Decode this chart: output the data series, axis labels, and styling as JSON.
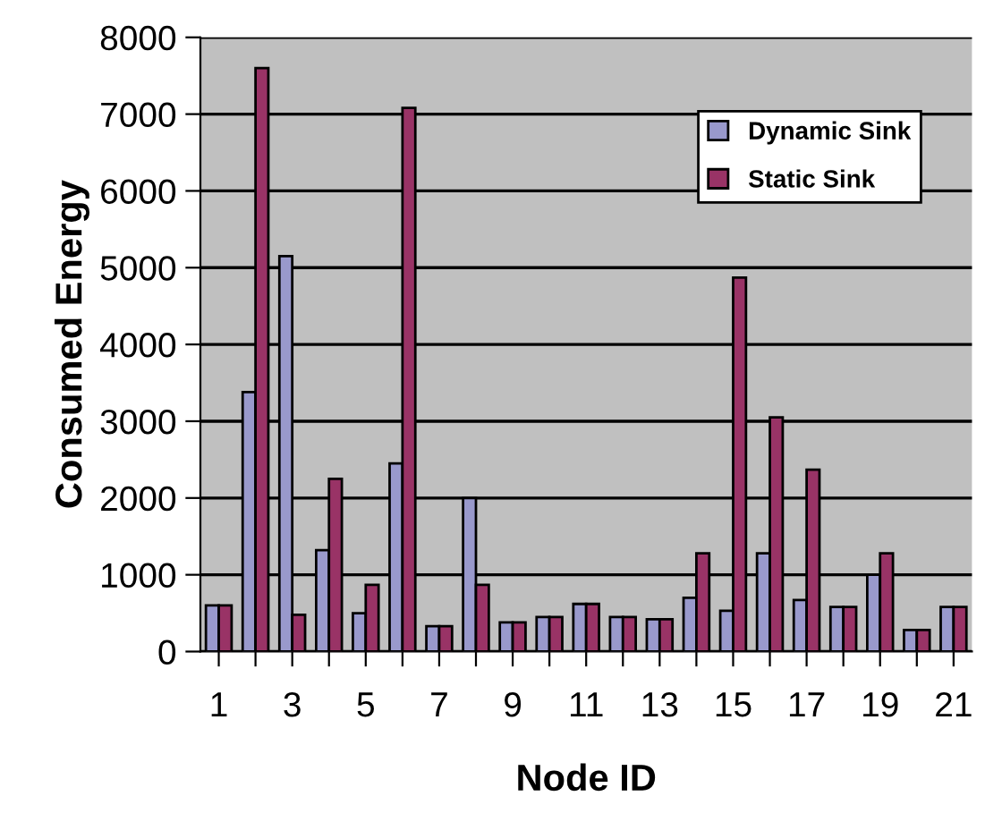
{
  "chart_data": {
    "type": "bar",
    "xlabel": "Node ID",
    "ylabel": "Consumed Energy",
    "categories": [
      "1",
      null,
      "3",
      null,
      "5",
      null,
      "7",
      null,
      "9",
      null,
      "11",
      null,
      "13",
      null,
      "15",
      null,
      "17",
      null,
      "19",
      null,
      "21"
    ],
    "series": [
      {
        "name": "Dynamic Sink",
        "color": "#9999cc",
        "values": [
          600,
          3380,
          5150,
          1320,
          500,
          2450,
          330,
          2000,
          380,
          450,
          620,
          450,
          420,
          700,
          530,
          1280,
          670,
          580,
          1000,
          280,
          580
        ]
      },
      {
        "name": "Static Sink",
        "color": "#993366",
        "values": [
          600,
          7600,
          480,
          2250,
          870,
          7080,
          330,
          870,
          380,
          450,
          620,
          450,
          420,
          1280,
          4870,
          3050,
          2370,
          580,
          1280,
          280,
          580
        ]
      }
    ],
    "ylim": [
      0,
      8000
    ],
    "yticks": [
      0,
      1000,
      2000,
      3000,
      4000,
      5000,
      6000,
      7000,
      8000
    ],
    "grid": "y",
    "legend": "top right"
  }
}
